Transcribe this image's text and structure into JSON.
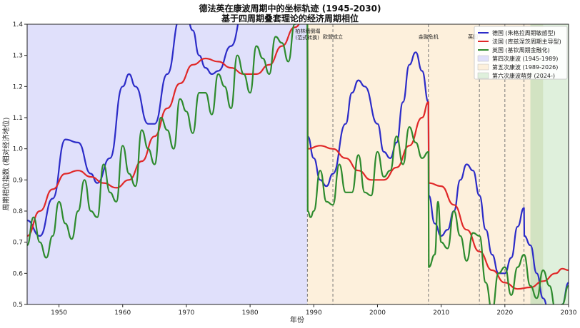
{
  "chart_data": {
    "type": "line",
    "title": "德法英在康波周期中的坐标轨迹 (1945-2030)",
    "subtitle": "基于四周期叠套理论的经济周期相位",
    "xlabel": "年份",
    "ylabel": "周期相位指数 (相对经济地位)",
    "xlim": [
      1945,
      2030
    ],
    "ylim": [
      0.5,
      1.4
    ],
    "x_ticks": [
      "1950",
      "1960",
      "1970",
      "1980",
      "1990",
      "2000",
      "2010",
      "2020",
      "2030"
    ],
    "y_ticks": [
      "0.5",
      "0.6",
      "0.7",
      "0.8",
      "0.9",
      "1.0",
      "1.1",
      "1.2",
      "1.3",
      "1.4"
    ],
    "grid": false,
    "legend_position": "top-right",
    "series": [
      {
        "name": "德国 (朱格拉周期敏感型)",
        "color": "#2c2cc8",
        "points": [
          [
            1945,
            0.77
          ],
          [
            1947,
            0.72
          ],
          [
            1949,
            0.84
          ],
          [
            1951,
            1.03
          ],
          [
            1953,
            1.02
          ],
          [
            1955,
            0.92
          ],
          [
            1956,
            0.89
          ],
          [
            1958,
            0.97
          ],
          [
            1960,
            1.2
          ],
          [
            1961,
            1.24
          ],
          [
            1962,
            1.2
          ],
          [
            1964,
            1.08
          ],
          [
            1965,
            1.08
          ],
          [
            1967,
            1.24
          ],
          [
            1969,
            1.42
          ],
          [
            1970,
            1.43
          ],
          [
            1971,
            1.38
          ],
          [
            1972,
            1.3
          ],
          [
            1973,
            1.26
          ],
          [
            1974,
            1.24
          ],
          [
            1975,
            1.25
          ],
          [
            1977,
            1.33
          ],
          [
            1979,
            1.45
          ],
          [
            1985,
            1.55
          ],
          [
            1988,
            1.52
          ],
          [
            1989,
            1.4
          ],
          [
            1989.05,
            1.04
          ],
          [
            1990,
            0.97
          ],
          [
            1991,
            0.9
          ],
          [
            1992,
            0.88
          ],
          [
            1993,
            0.92
          ],
          [
            1995,
            1.08
          ],
          [
            1996,
            1.18
          ],
          [
            1997,
            1.22
          ],
          [
            1998,
            1.2
          ],
          [
            2000,
            1.08
          ],
          [
            2001,
            0.99
          ],
          [
            2002,
            0.97
          ],
          [
            2003,
            1.02
          ],
          [
            2004,
            1.15
          ],
          [
            2005,
            1.27
          ],
          [
            2006,
            1.31
          ],
          [
            2007,
            1.25
          ],
          [
            2008,
            1.15
          ],
          [
            2008.05,
            0.85
          ],
          [
            2009,
            0.76
          ],
          [
            2010,
            0.72
          ],
          [
            2011,
            0.74
          ],
          [
            2012,
            0.8
          ],
          [
            2013,
            0.9
          ],
          [
            2014,
            0.95
          ],
          [
            2015,
            0.93
          ],
          [
            2016,
            0.85
          ],
          [
            2017,
            0.74
          ],
          [
            2018,
            0.66
          ],
          [
            2019,
            0.6
          ],
          [
            2020,
            0.6
          ],
          [
            2021,
            0.65
          ],
          [
            2022,
            0.75
          ],
          [
            2023,
            0.81
          ],
          [
            2023.05,
            0.72
          ],
          [
            2024,
            0.69
          ],
          [
            2025,
            0.6
          ],
          [
            2026,
            0.52
          ],
          [
            2027,
            0.47
          ],
          [
            2028,
            0.46
          ],
          [
            2029,
            0.5
          ],
          [
            2030,
            0.57
          ]
        ]
      },
      {
        "name": "法国 (库兹涅茨周期主导型)",
        "color": "#e02828",
        "points": [
          [
            1945,
            0.72
          ],
          [
            1947,
            0.8
          ],
          [
            1949,
            0.87
          ],
          [
            1951,
            0.92
          ],
          [
            1953,
            0.93
          ],
          [
            1955,
            0.91
          ],
          [
            1957,
            0.89
          ],
          [
            1959,
            0.875
          ],
          [
            1961,
            0.9
          ],
          [
            1963,
            0.96
          ],
          [
            1965,
            1.04
          ],
          [
            1967,
            1.13
          ],
          [
            1969,
            1.21
          ],
          [
            1971,
            1.27
          ],
          [
            1973,
            1.29
          ],
          [
            1975,
            1.28
          ],
          [
            1977,
            1.26
          ],
          [
            1979,
            1.24
          ],
          [
            1981,
            1.24
          ],
          [
            1983,
            1.27
          ],
          [
            1985,
            1.33
          ],
          [
            1987,
            1.39
          ],
          [
            1989,
            1.44
          ],
          [
            1989.05,
            1.0
          ],
          [
            1991,
            1.01
          ],
          [
            1993,
            1.0
          ],
          [
            1995,
            0.97
          ],
          [
            1997,
            0.93
          ],
          [
            1999,
            0.9
          ],
          [
            2001,
            0.9
          ],
          [
            2003,
            0.94
          ],
          [
            2005,
            1.01
          ],
          [
            2007,
            1.1
          ],
          [
            2008,
            1.15
          ],
          [
            2008.05,
            0.89
          ],
          [
            2010,
            0.88
          ],
          [
            2012,
            0.82
          ],
          [
            2014,
            0.74
          ],
          [
            2016,
            0.67
          ],
          [
            2018,
            0.61
          ],
          [
            2020,
            0.57
          ],
          [
            2022,
            0.55
          ],
          [
            2024,
            0.555
          ],
          [
            2026,
            0.575
          ],
          [
            2028,
            0.6
          ],
          [
            2029,
            0.615
          ],
          [
            2030,
            0.61
          ]
        ]
      },
      {
        "name": "英国 (基钦周期金融化)",
        "color": "#2e8b2e",
        "points": [
          [
            1945,
            0.69
          ],
          [
            1946,
            0.78
          ],
          [
            1947,
            0.7
          ],
          [
            1948,
            0.65
          ],
          [
            1949,
            0.72
          ],
          [
            1950,
            0.83
          ],
          [
            1951,
            0.76
          ],
          [
            1952,
            0.71
          ],
          [
            1953,
            0.8
          ],
          [
            1954,
            0.9
          ],
          [
            1955,
            0.8
          ],
          [
            1956,
            0.78
          ],
          [
            1957,
            0.95
          ],
          [
            1958,
            0.86
          ],
          [
            1959,
            0.83
          ],
          [
            1960,
            1.01
          ],
          [
            1961,
            0.92
          ],
          [
            1962,
            0.88
          ],
          [
            1963,
            1.06
          ],
          [
            1964,
            1.0
          ],
          [
            1965,
            0.95
          ],
          [
            1966,
            1.1
          ],
          [
            1967,
            1.06
          ],
          [
            1968,
            1.0
          ],
          [
            1969,
            1.16
          ],
          [
            1970,
            1.12
          ],
          [
            1971,
            1.05
          ],
          [
            1972,
            1.18
          ],
          [
            1973,
            1.18
          ],
          [
            1974,
            1.11
          ],
          [
            1975,
            1.24
          ],
          [
            1976,
            1.2
          ],
          [
            1977,
            1.13
          ],
          [
            1978,
            1.3
          ],
          [
            1979,
            1.24
          ],
          [
            1980,
            1.18
          ],
          [
            1981,
            1.33
          ],
          [
            1982,
            1.29
          ],
          [
            1983,
            1.24
          ],
          [
            1984,
            1.36
          ],
          [
            1985,
            1.34
          ],
          [
            1986,
            1.28
          ],
          [
            1987,
            1.4
          ],
          [
            1988,
            1.45
          ],
          [
            1989,
            1.4
          ],
          [
            1989.05,
            0.8
          ],
          [
            1989.5,
            0.78
          ],
          [
            1990,
            0.8
          ],
          [
            1991,
            0.93
          ],
          [
            1992,
            0.83
          ],
          [
            1993,
            0.82
          ],
          [
            1994,
            0.95
          ],
          [
            1995,
            0.86
          ],
          [
            1996,
            0.86
          ],
          [
            1997,
            0.98
          ],
          [
            1998,
            0.86
          ],
          [
            1999,
            0.85
          ],
          [
            2000,
            0.99
          ],
          [
            2001,
            0.91
          ],
          [
            2002,
            0.93
          ],
          [
            2003,
            1.04
          ],
          [
            2004,
            0.95
          ],
          [
            2005,
            1.07
          ],
          [
            2006,
            1.02
          ],
          [
            2007,
            0.97
          ],
          [
            2008,
            0.99
          ],
          [
            2008.05,
            0.62
          ],
          [
            2009,
            0.66
          ],
          [
            2009.5,
            0.83
          ],
          [
            2010,
            0.7
          ],
          [
            2011,
            0.68
          ],
          [
            2012,
            0.8
          ],
          [
            2013,
            0.72
          ],
          [
            2014,
            0.64
          ],
          [
            2015,
            0.73
          ],
          [
            2016,
            0.72
          ],
          [
            2017,
            0.57
          ],
          [
            2018,
            0.48
          ],
          [
            2019,
            0.6
          ],
          [
            2020,
            0.62
          ],
          [
            2021,
            0.53
          ],
          [
            2022,
            0.62
          ],
          [
            2023,
            0.66
          ],
          [
            2024,
            0.56
          ],
          [
            2025,
            0.52
          ],
          [
            2026,
            0.61
          ],
          [
            2027,
            0.56
          ],
          [
            2028,
            0.48
          ],
          [
            2029,
            0.5
          ],
          [
            2030,
            0.56
          ]
        ]
      }
    ],
    "regions": [
      {
        "name": "第四次康波 (1945-1989)",
        "start": 1945,
        "end": 1989,
        "color": "#e0e0fb"
      },
      {
        "name": "第五次康波 (1989-2026)",
        "start": 1989,
        "end": 2024,
        "color": "#fdf0dc"
      },
      {
        "name": "第六次康波萌芽 (2024-)",
        "start": 2024,
        "end": 2030,
        "color": "#dff0dc"
      }
    ],
    "overlap_band": {
      "start": 2024,
      "end": 2026,
      "color": "#d2e3c2"
    },
    "events": [
      {
        "year": 1989,
        "label": "柏林墙倒塌",
        "label2": "(范式转换)"
      },
      {
        "year": 1993,
        "label": "欧盟成立",
        "label2": ""
      },
      {
        "year": 2008,
        "label": "金融危机",
        "label2": ""
      },
      {
        "year": 2016,
        "label": "英国",
        "label2": ""
      },
      {
        "year": 2020,
        "label": "",
        "label2": ""
      },
      {
        "year": 2023,
        "label": "",
        "label2": ""
      }
    ]
  }
}
